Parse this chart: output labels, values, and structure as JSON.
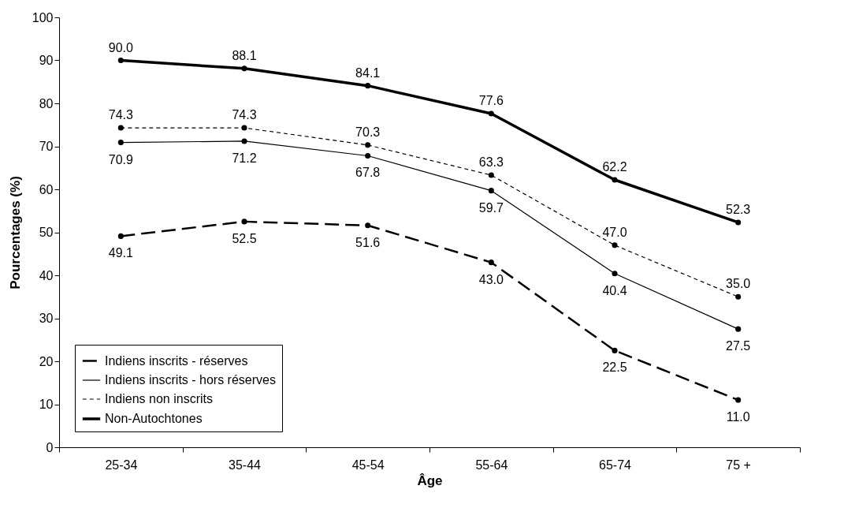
{
  "chart_data": {
    "type": "line",
    "xlabel": "Âge",
    "ylabel": "Pourcentages (%)",
    "categories": [
      "25-34",
      "35-44",
      "45-54",
      "55-64",
      "65-74",
      "75 +"
    ],
    "ylim": [
      0,
      100
    ],
    "yticks": [
      0,
      10,
      20,
      30,
      40,
      50,
      60,
      70,
      80,
      90,
      100
    ],
    "grid": false,
    "legend": "bottom left",
    "marker": "circle",
    "series": [
      {
        "name": "Indiens inscrits - réserves",
        "color": "#000000",
        "line_style": "dashed",
        "values": [
          49.1,
          52.5,
          51.6,
          43.0,
          22.5,
          11.0
        ],
        "value_labels": [
          "49.1",
          "52.5",
          "51.6",
          "43.0",
          "22.5",
          "11.0"
        ]
      },
      {
        "name": "Indiens inscrits - hors réserves",
        "color": "#000000",
        "line_style": "solid",
        "values": [
          70.9,
          71.2,
          67.8,
          59.7,
          40.4,
          27.5
        ],
        "value_labels": [
          "70.9",
          "71.2",
          "67.8",
          "59.7",
          "40.4",
          "27.5"
        ]
      },
      {
        "name": "Indiens non inscrits",
        "color": "#000000",
        "line_style": "dotted",
        "values": [
          74.3,
          74.3,
          70.3,
          63.3,
          47.0,
          35.0
        ],
        "value_labels": [
          "74.3",
          "74.3",
          "70.3",
          "63.3",
          "47.0",
          "35.0"
        ]
      },
      {
        "name": "Non-Autochtones",
        "color": "#000000",
        "line_style": "solid",
        "values": [
          90.0,
          88.1,
          84.1,
          77.6,
          62.2,
          52.3
        ],
        "value_labels": [
          "90.0",
          "88.1",
          "84.1",
          "77.6",
          "62.2",
          "52.3"
        ]
      }
    ]
  }
}
